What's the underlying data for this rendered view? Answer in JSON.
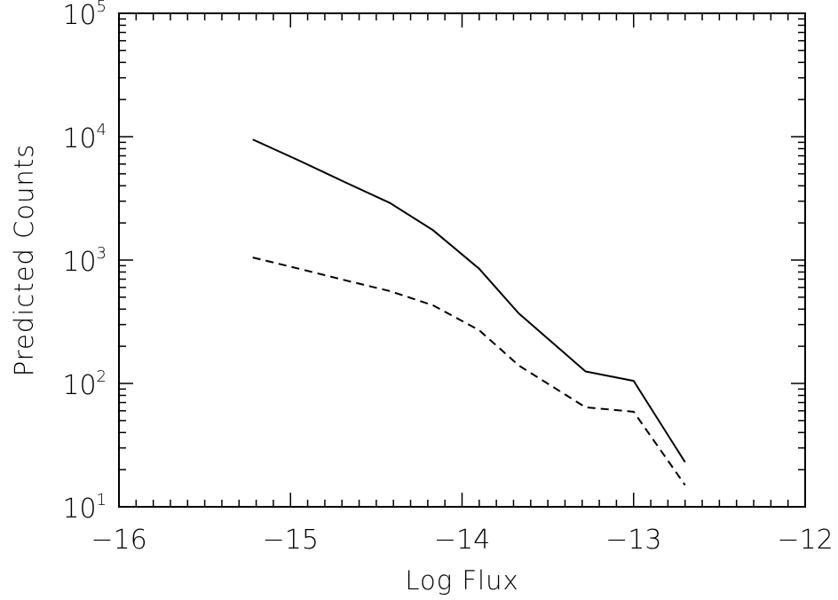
{
  "chart_data": {
    "type": "line",
    "xlabel": "Log Flux",
    "ylabel": "Predicted Counts",
    "xlim": [
      -16,
      -12
    ],
    "ylim": [
      10,
      100000
    ],
    "yscale": "log",
    "grid": false,
    "x_ticks": [
      -16,
      -15,
      -14,
      -13,
      -12
    ],
    "x_tick_labels": [
      "−16",
      "−15",
      "−14",
      "−13",
      "−12"
    ],
    "y_ticks": [
      10,
      100,
      1000,
      10000,
      100000
    ],
    "y_tick_labels": [
      {
        "base": "10",
        "exp": "1"
      },
      {
        "base": "10",
        "exp": "2"
      },
      {
        "base": "10",
        "exp": "3"
      },
      {
        "base": "10",
        "exp": "4"
      },
      {
        "base": "10",
        "exp": "5"
      }
    ],
    "series": [
      {
        "style": "solid",
        "color": "#000000",
        "x": [
          -15.22,
          -14.95,
          -14.67,
          -14.42,
          -14.17,
          -13.9,
          -13.67,
          -13.28,
          -13.0,
          -12.7
        ],
        "y": [
          9500,
          6400,
          4200,
          2900,
          1750,
          850,
          370,
          125,
          105,
          23
        ]
      },
      {
        "style": "dashed",
        "color": "#000000",
        "x": [
          -15.22,
          -14.95,
          -14.67,
          -14.42,
          -14.17,
          -13.9,
          -13.67,
          -13.28,
          -13.0,
          -12.7
        ],
        "y": [
          1050,
          850,
          680,
          560,
          430,
          270,
          140,
          64,
          59,
          15
        ]
      }
    ]
  }
}
